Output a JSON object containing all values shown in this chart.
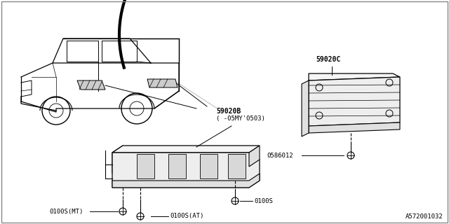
{
  "bg_color": "#ffffff",
  "border_color": "#888888",
  "line_color": "#000000",
  "gray_color": "#aaaaaa",
  "light_gray": "#dddddd",
  "part_numbers": {
    "part_a": "59020B",
    "part_a_note": "( -05MY'0503)",
    "part_b": "59020C",
    "bolt_a": "0100S",
    "bolt_mt": "0100S(MT)",
    "bolt_at": "0100S(AT)",
    "bolt_c": "0586012"
  },
  "diagram_id": "A572001032",
  "font_size_label": 7,
  "font_size_id": 6.5
}
